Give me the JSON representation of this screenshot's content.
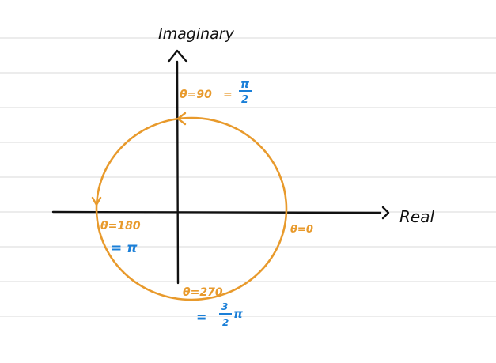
{
  "colors": {
    "paper": "#ffffff",
    "ruling": "#d9d9d9",
    "ink": "#111111",
    "circle": "#e89a2c",
    "blue": "#1a7fd8"
  },
  "axes": {
    "x_label": "Real",
    "y_label": "Imaginary"
  },
  "labels": {
    "theta_0": "θ=0",
    "theta_90": "θ=90",
    "theta_90_eq": "=",
    "pi_over_2_num": "π",
    "pi_over_2_den": "2",
    "theta_180": "θ=180",
    "eq_pi": "= π",
    "theta_270": "θ=270",
    "three_halves_eq": "=",
    "three_halves_num": "3",
    "three_halves_den": "2",
    "three_halves_pi": "π"
  }
}
